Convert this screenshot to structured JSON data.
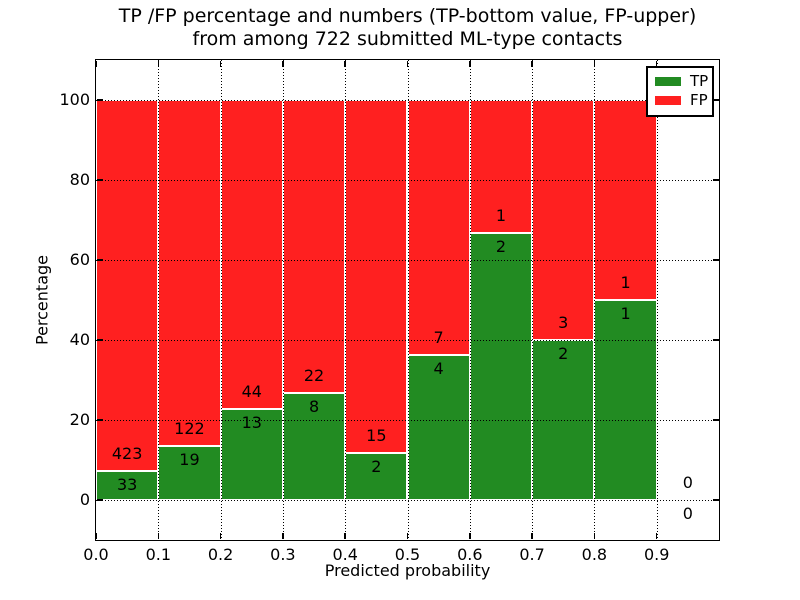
{
  "title": {
    "line1": "TP /FP percentage and numbers (TP-bottom value, FP-upper)",
    "line2": "from among 722 submitted ML-type contacts"
  },
  "axes": {
    "xlabel": "Predicted probability",
    "ylabel": "Percentage",
    "xtick_labels": [
      "0.0",
      "0.1",
      "0.2",
      "0.3",
      "0.4",
      "0.5",
      "0.6",
      "0.7",
      "0.8",
      "0.9"
    ],
    "xtick_values": [
      0.0,
      0.1,
      0.2,
      0.3,
      0.4,
      0.5,
      0.6,
      0.7,
      0.8,
      0.9
    ],
    "ytick_values": [
      0,
      20,
      40,
      60,
      80,
      100
    ],
    "xlim": [
      0.0,
      1.0
    ],
    "ylim": [
      -10,
      110
    ],
    "grid": "dotted-black"
  },
  "legend": {
    "position": "upper-right",
    "entries": [
      {
        "label": "TP",
        "color": "#228b22"
      },
      {
        "label": "FP",
        "color": "#ff2020"
      }
    ]
  },
  "chart_data": {
    "type": "bar",
    "stacked": true,
    "normalized_to_percent": true,
    "title": "TP /FP percentage and numbers (TP-bottom value, FP-upper) from among 722 submitted ML-type contacts",
    "xlabel": "Predicted probability",
    "ylabel": "Percentage",
    "total_contacts": 722,
    "bin_width": 0.1,
    "bin_starts": [
      0.0,
      0.1,
      0.2,
      0.3,
      0.4,
      0.5,
      0.6,
      0.7,
      0.8,
      0.9
    ],
    "categories": [
      "0.0-0.1",
      "0.1-0.2",
      "0.2-0.3",
      "0.3-0.4",
      "0.4-0.5",
      "0.5-0.6",
      "0.6-0.7",
      "0.7-0.8",
      "0.8-0.9",
      "0.9-1.0"
    ],
    "series": [
      {
        "name": "TP",
        "color": "#228b22",
        "counts": [
          33,
          19,
          13,
          8,
          2,
          4,
          2,
          2,
          1,
          0
        ]
      },
      {
        "name": "FP",
        "color": "#ff2020",
        "counts": [
          423,
          122,
          44,
          22,
          15,
          7,
          1,
          3,
          1,
          0
        ]
      }
    ],
    "tp_percent": [
      7.24,
      13.48,
      22.81,
      26.67,
      11.76,
      36.36,
      66.67,
      40.0,
      50.0,
      null
    ],
    "fp_percent": [
      92.76,
      86.52,
      77.19,
      73.33,
      88.24,
      63.64,
      33.33,
      60.0,
      50.0,
      null
    ],
    "bar_value_labels_note": "TP count printed just below green top, FP count printed just above green top"
  }
}
